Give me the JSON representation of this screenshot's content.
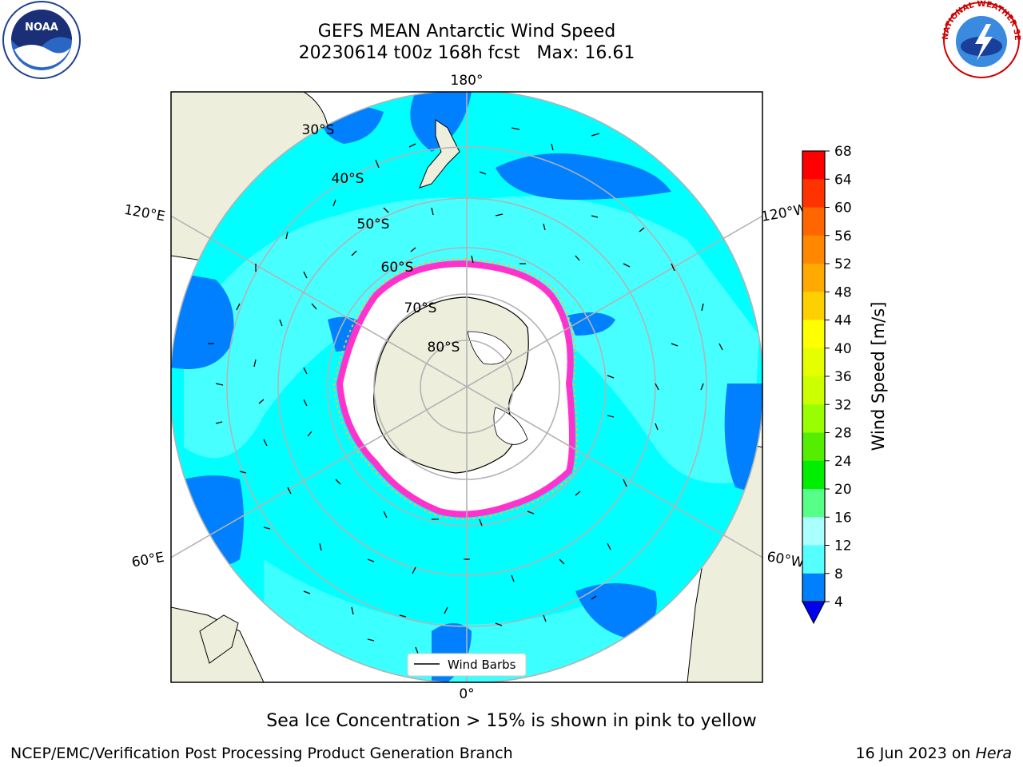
{
  "header": {
    "title": "GEFS MEAN Antarctic Wind Speed",
    "subtitle": "20230614 t00z 168h fcst   Max: 16.61"
  },
  "logos": {
    "noaa_text": "NOAA",
    "nws_text": "NATIONAL WEATHER SERVICE"
  },
  "map": {
    "longitude_labels": [
      "180°",
      "120°E",
      "120°W",
      "60°E",
      "60°W",
      "0°"
    ],
    "latitude_labels": [
      "30°S",
      "40°S",
      "50°S",
      "60°S",
      "70°S",
      "80°S"
    ],
    "legend_label": "Wind Barbs",
    "colors": {
      "ocean_low": "#00ffff",
      "ocean_mid": "#55ffff",
      "ocean_dark": "#0080ff",
      "land": "#eeeedd",
      "ice": "#ffffff",
      "ice_edge": "#ff33cc",
      "grid": "#b3b3b3"
    }
  },
  "colorbar": {
    "label": "Wind Speed [m/s]",
    "ticks": [
      "68",
      "64",
      "60",
      "56",
      "52",
      "48",
      "44",
      "40",
      "36",
      "32",
      "28",
      "24",
      "20",
      "16",
      "12",
      "8",
      "4"
    ],
    "colors": [
      "#ff0000",
      "#ff3300",
      "#ff6600",
      "#ff8800",
      "#ffaa00",
      "#ffd000",
      "#ffff00",
      "#e6ff00",
      "#ccff00",
      "#99ff00",
      "#55ee00",
      "#00ee00",
      "#55ff88",
      "#aaffff",
      "#55ffff",
      "#00ffff",
      "#0080ff"
    ],
    "under_color": "#0000ee"
  },
  "caption": "Sea Ice Concentration > 15% is shown in pink to yellow",
  "footer": {
    "left": "NCEP/EMC/Verification Post Processing Product Generation Branch",
    "right_date": "16 Jun 2023 on ",
    "right_host": "Hera"
  }
}
